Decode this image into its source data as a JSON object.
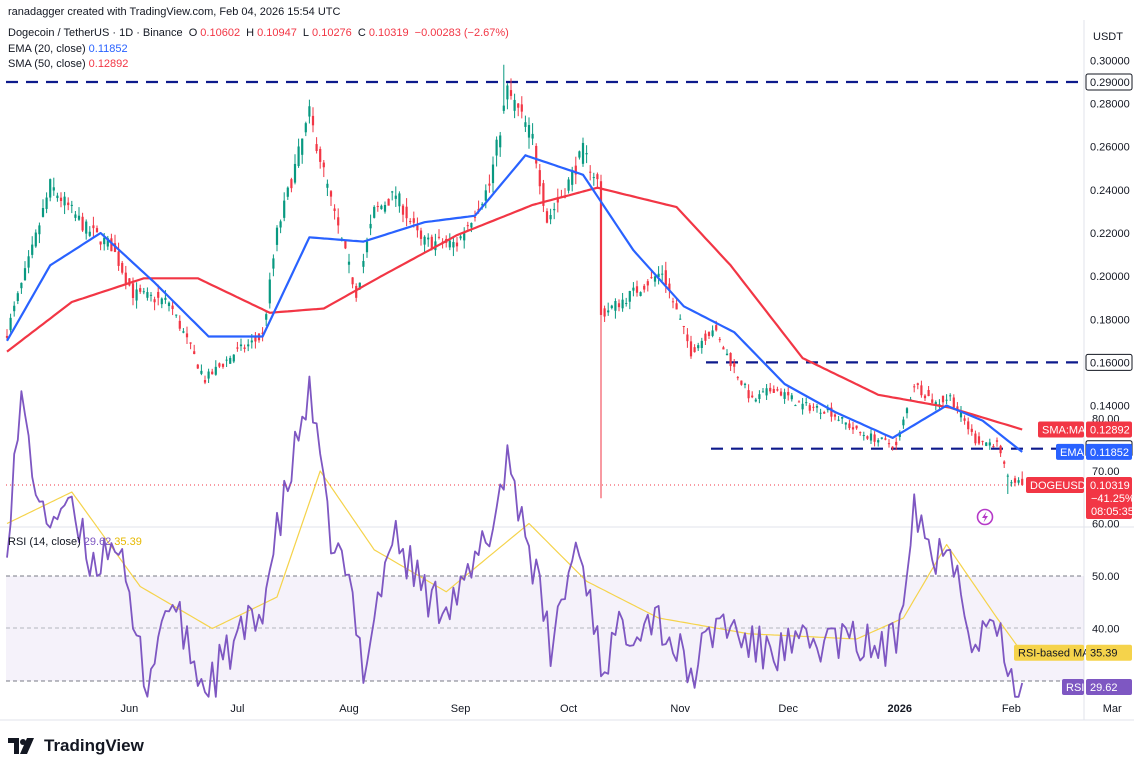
{
  "header": {
    "credit": "ranadagger created with TradingView.com, Feb 04, 2026 15:54 UTC",
    "symbol": "Dogecoin / TetherUS · 1D · Binance",
    "open_label": "O",
    "open": "0.10602",
    "high_label": "H",
    "high": "0.10947",
    "low_label": "L",
    "low": "0.10276",
    "close_label": "C",
    "close": "0.10319",
    "change": "−0.00283 (−2.67%)",
    "ema_label": "EMA (20, close)",
    "ema_value": "0.11852",
    "sma_label": "SMA (50, close)",
    "sma_value": "0.12892",
    "rsi_label": "RSI (14, close)",
    "rsi_value": "29.62",
    "rsi_ma_value": "35.39"
  },
  "axis": {
    "currency": "USDT",
    "price_ticks": [
      "0.30000",
      "0.28000",
      "0.26000",
      "0.24000",
      "0.22000",
      "0.20000",
      "0.18000",
      "0.14000"
    ],
    "rsi_ticks": [
      "80.00",
      "70.00",
      "60.00",
      "50.00",
      "40.00"
    ],
    "time_ticks": [
      "Jun",
      "Jul",
      "Aug",
      "Sep",
      "Oct",
      "Nov",
      "Dec",
      "2026",
      "Feb",
      "Mar"
    ]
  },
  "badges": {
    "level_290": "0.29000",
    "level_160": "0.16000",
    "level_120": "0.12000",
    "sma_tag": "SMA:MA",
    "sma_val": "0.12892",
    "ema_tag": "EMA",
    "ema_val": "0.11852",
    "price_tag": "DOGEUSDT",
    "price_val": "0.10319",
    "price_pct": "−41.25%",
    "countdown": "08:05:35",
    "rsi_ma_tag": "RSI-based MA",
    "rsi_ma_val": "35.39",
    "rsi_tag": "RSI",
    "rsi_val": "29.62"
  },
  "brand": {
    "name": "TradingView"
  },
  "colors": {
    "up": "#089981",
    "down": "#f23645",
    "ema": "#2962ff",
    "sma": "#f23645",
    "rsi": "#7e57c2",
    "rsi_ma": "#f5d34b",
    "level": "#0d1a8c"
  },
  "chart_data": {
    "type": "candlestick",
    "symbol": "DOGEUSDT",
    "ylim": [
      0.095,
      0.31
    ],
    "levels": [
      0.29,
      0.16,
      0.12
    ],
    "anchors": [
      {
        "date": "2025-04-28",
        "price": 0.174
      },
      {
        "date": "2025-05-05",
        "price": 0.212
      },
      {
        "date": "2025-05-10",
        "price": 0.242
      },
      {
        "date": "2025-05-20",
        "price": 0.222
      },
      {
        "date": "2025-05-27",
        "price": 0.214
      },
      {
        "date": "2025-06-02",
        "price": 0.192
      },
      {
        "date": "2025-06-12",
        "price": 0.188
      },
      {
        "date": "2025-06-22",
        "price": 0.152
      },
      {
        "date": "2025-06-30",
        "price": 0.164
      },
      {
        "date": "2025-07-08",
        "price": 0.172
      },
      {
        "date": "2025-07-12",
        "price": 0.22
      },
      {
        "date": "2025-07-21",
        "price": 0.275
      },
      {
        "date": "2025-07-28",
        "price": 0.228
      },
      {
        "date": "2025-08-03",
        "price": 0.192
      },
      {
        "date": "2025-08-08",
        "price": 0.23
      },
      {
        "date": "2025-08-14",
        "price": 0.238
      },
      {
        "date": "2025-08-21",
        "price": 0.216
      },
      {
        "date": "2025-08-31",
        "price": 0.215
      },
      {
        "date": "2025-09-09",
        "price": 0.242
      },
      {
        "date": "2025-09-14",
        "price": 0.286
      },
      {
        "date": "2025-09-21",
        "price": 0.264
      },
      {
        "date": "2025-09-25",
        "price": 0.226
      },
      {
        "date": "2025-09-30",
        "price": 0.24
      },
      {
        "date": "2025-10-05",
        "price": 0.258
      },
      {
        "date": "2025-10-09",
        "price": 0.244
      },
      {
        "date": "2025-10-10",
        "price": 0.182
      },
      {
        "date": "2025-10-17",
        "price": 0.19
      },
      {
        "date": "2025-10-27",
        "price": 0.202
      },
      {
        "date": "2025-11-04",
        "price": 0.165
      },
      {
        "date": "2025-11-10",
        "price": 0.176
      },
      {
        "date": "2025-11-17",
        "price": 0.154
      },
      {
        "date": "2025-11-21",
        "price": 0.142
      },
      {
        "date": "2025-11-27",
        "price": 0.148
      },
      {
        "date": "2025-12-05",
        "price": 0.14
      },
      {
        "date": "2025-12-12",
        "price": 0.138
      },
      {
        "date": "2025-12-20",
        "price": 0.128
      },
      {
        "date": "2025-12-31",
        "price": 0.121
      },
      {
        "date": "2026-01-05",
        "price": 0.15
      },
      {
        "date": "2026-01-11",
        "price": 0.141
      },
      {
        "date": "2026-01-15",
        "price": 0.144
      },
      {
        "date": "2026-01-22",
        "price": 0.124
      },
      {
        "date": "2026-01-28",
        "price": 0.122
      },
      {
        "date": "2026-01-31",
        "price": 0.106
      },
      {
        "date": "2026-02-04",
        "price": 0.1032
      }
    ],
    "ema_20": [
      {
        "date": "2025-04-28",
        "price": 0.17
      },
      {
        "date": "2025-05-10",
        "price": 0.205
      },
      {
        "date": "2025-05-24",
        "price": 0.22
      },
      {
        "date": "2025-06-08",
        "price": 0.197
      },
      {
        "date": "2025-06-23",
        "price": 0.172
      },
      {
        "date": "2025-07-08",
        "price": 0.172
      },
      {
        "date": "2025-07-21",
        "price": 0.218
      },
      {
        "date": "2025-08-05",
        "price": 0.216
      },
      {
        "date": "2025-08-22",
        "price": 0.225
      },
      {
        "date": "2025-09-05",
        "price": 0.228
      },
      {
        "date": "2025-09-19",
        "price": 0.256
      },
      {
        "date": "2025-10-05",
        "price": 0.247
      },
      {
        "date": "2025-10-19",
        "price": 0.212
      },
      {
        "date": "2025-11-02",
        "price": 0.186
      },
      {
        "date": "2025-11-16",
        "price": 0.174
      },
      {
        "date": "2025-11-30",
        "price": 0.15
      },
      {
        "date": "2025-12-14",
        "price": 0.137
      },
      {
        "date": "2025-12-30",
        "price": 0.125
      },
      {
        "date": "2026-01-14",
        "price": 0.14
      },
      {
        "date": "2026-01-24",
        "price": 0.133
      },
      {
        "date": "2026-02-04",
        "price": 0.1185
      }
    ],
    "sma_50": [
      {
        "date": "2025-04-28",
        "price": 0.165
      },
      {
        "date": "2025-05-16",
        "price": 0.188
      },
      {
        "date": "2025-06-05",
        "price": 0.199
      },
      {
        "date": "2025-06-20",
        "price": 0.199
      },
      {
        "date": "2025-07-10",
        "price": 0.183
      },
      {
        "date": "2025-07-25",
        "price": 0.185
      },
      {
        "date": "2025-08-10",
        "price": 0.2
      },
      {
        "date": "2025-08-31",
        "price": 0.219
      },
      {
        "date": "2025-09-21",
        "price": 0.233
      },
      {
        "date": "2025-10-09",
        "price": 0.241
      },
      {
        "date": "2025-10-31",
        "price": 0.232
      },
      {
        "date": "2025-11-15",
        "price": 0.205
      },
      {
        "date": "2025-12-05",
        "price": 0.162
      },
      {
        "date": "2025-12-26",
        "price": 0.145
      },
      {
        "date": "2026-01-15",
        "price": 0.139
      },
      {
        "date": "2026-02-04",
        "price": 0.1289
      }
    ],
    "rsi_14": [
      {
        "date": "2025-04-28",
        "price": 58
      },
      {
        "date": "2025-05-02",
        "price": 83
      },
      {
        "date": "2025-05-08",
        "price": 60
      },
      {
        "date": "2025-05-14",
        "price": 64
      },
      {
        "date": "2025-05-22",
        "price": 52
      },
      {
        "date": "2025-05-28",
        "price": 58
      },
      {
        "date": "2025-06-02",
        "price": 40
      },
      {
        "date": "2025-06-06",
        "price": 30
      },
      {
        "date": "2025-06-12",
        "price": 46
      },
      {
        "date": "2025-06-22",
        "price": 28
      },
      {
        "date": "2025-07-01",
        "price": 38
      },
      {
        "date": "2025-07-07",
        "price": 42
      },
      {
        "date": "2025-07-14",
        "price": 64
      },
      {
        "date": "2025-07-21",
        "price": 86
      },
      {
        "date": "2025-07-26",
        "price": 60
      },
      {
        "date": "2025-08-01",
        "price": 48
      },
      {
        "date": "2025-08-05",
        "price": 33
      },
      {
        "date": "2025-08-13",
        "price": 58
      },
      {
        "date": "2025-08-24",
        "price": 45
      },
      {
        "date": "2025-09-02",
        "price": 47
      },
      {
        "date": "2025-09-10",
        "price": 60
      },
      {
        "date": "2025-09-14",
        "price": 73
      },
      {
        "date": "2025-09-20",
        "price": 56
      },
      {
        "date": "2025-09-26",
        "price": 36
      },
      {
        "date": "2025-10-03",
        "price": 56
      },
      {
        "date": "2025-10-07",
        "price": 47
      },
      {
        "date": "2025-10-10",
        "price": 33
      },
      {
        "date": "2025-10-16",
        "price": 40
      },
      {
        "date": "2025-10-25",
        "price": 43
      },
      {
        "date": "2025-11-04",
        "price": 31
      },
      {
        "date": "2025-11-12",
        "price": 42
      },
      {
        "date": "2025-11-22",
        "price": 36
      },
      {
        "date": "2025-12-03",
        "price": 36
      },
      {
        "date": "2025-12-14",
        "price": 38
      },
      {
        "date": "2025-12-28",
        "price": 36
      },
      {
        "date": "2025-12-31",
        "price": 38
      },
      {
        "date": "2026-01-05",
        "price": 65
      },
      {
        "date": "2026-01-11",
        "price": 52
      },
      {
        "date": "2026-01-14",
        "price": 59
      },
      {
        "date": "2026-01-22",
        "price": 37
      },
      {
        "date": "2026-01-28",
        "price": 42
      },
      {
        "date": "2026-01-31",
        "price": 28
      },
      {
        "date": "2026-02-04",
        "price": 29.62
      }
    ],
    "rsi_ma": [
      {
        "date": "2025-04-28",
        "price": 60
      },
      {
        "date": "2025-05-16",
        "price": 66
      },
      {
        "date": "2025-06-04",
        "price": 48
      },
      {
        "date": "2025-06-24",
        "price": 40
      },
      {
        "date": "2025-07-12",
        "price": 46
      },
      {
        "date": "2025-07-24",
        "price": 70
      },
      {
        "date": "2025-08-08",
        "price": 55
      },
      {
        "date": "2025-08-28",
        "price": 47
      },
      {
        "date": "2025-09-20",
        "price": 60
      },
      {
        "date": "2025-10-06",
        "price": 49
      },
      {
        "date": "2025-10-26",
        "price": 42
      },
      {
        "date": "2025-11-20",
        "price": 39
      },
      {
        "date": "2025-12-20",
        "price": 38
      },
      {
        "date": "2026-01-02",
        "price": 42
      },
      {
        "date": "2026-01-14",
        "price": 56
      },
      {
        "date": "2026-01-28",
        "price": 42
      },
      {
        "date": "2026-02-04",
        "price": 35.39
      }
    ]
  }
}
